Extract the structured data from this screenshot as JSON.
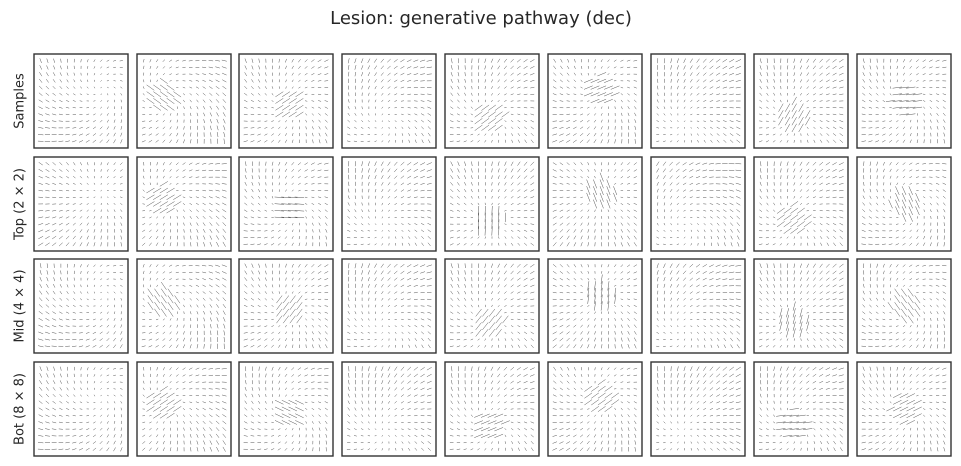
{
  "title": "Lesion: generative pathway (dec)",
  "row_labels": [
    "Samples",
    "Top (2 × 2)",
    "Mid (4 × 4)",
    "Bot (8 × 8)"
  ]
}
